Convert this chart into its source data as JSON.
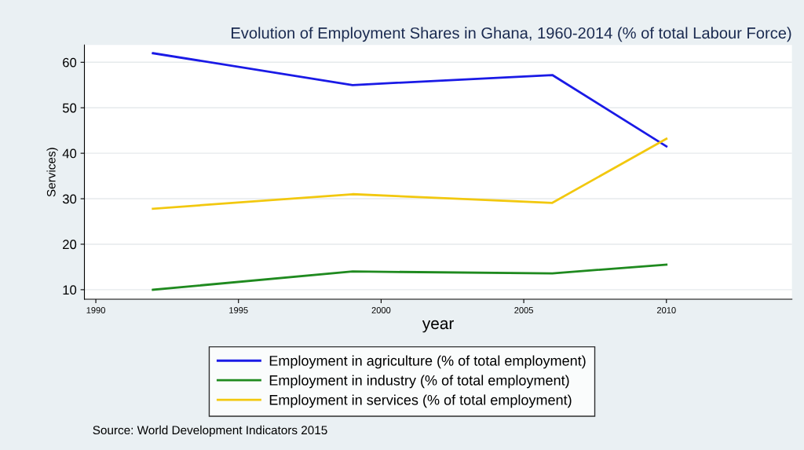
{
  "chart_data": {
    "type": "line",
    "title": "Evolution of Employment Shares in Ghana, 1960-2014 (% of total Labour Force)",
    "xlabel": "year",
    "ylabel": "Services)",
    "x": [
      1992,
      1999,
      2006,
      2010
    ],
    "series": [
      {
        "name": "Employment in agriculture (% of total employment)",
        "color": "#1a1ae6",
        "values": [
          62,
          55,
          57.2,
          41.5
        ]
      },
      {
        "name": "Employment in industry (% of total employment)",
        "color": "#1f8a1f",
        "values": [
          10,
          14,
          13.6,
          15.5
        ]
      },
      {
        "name": "Employment in services (% of total employment)",
        "color": "#f2c80f",
        "values": [
          27.8,
          31,
          29.1,
          43.2
        ]
      }
    ],
    "xlim": [
      1989.6,
      2014.4
    ],
    "xticks": [
      1990,
      1995,
      2000,
      2005,
      2010
    ],
    "ylim": [
      7.9,
      63.8
    ],
    "yticks": [
      10,
      20,
      30,
      40,
      50,
      60
    ],
    "grid": "y",
    "legend": "bottom",
    "annotations": [
      "Source: World Development Indicators 2015"
    ]
  }
}
